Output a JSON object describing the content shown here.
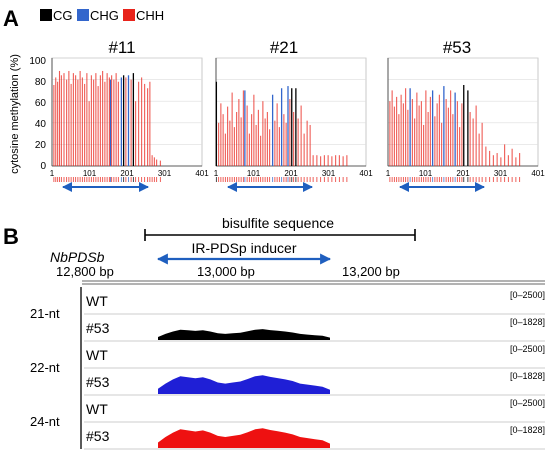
{
  "panel_a": {
    "label": "A",
    "legend": [
      {
        "name": "CG",
        "color": "#000000"
      },
      {
        "name": "CHG",
        "color": "#3366cc"
      },
      {
        "name": "CHH",
        "color": "#e8231b"
      }
    ],
    "ylabel": "cytosine methylation (%)",
    "yticks": [
      "0",
      "20",
      "40",
      "60",
      "80",
      "100"
    ],
    "xticks": [
      "1",
      "101",
      "201",
      "301",
      "401"
    ],
    "plots": [
      {
        "title": "#11"
      },
      {
        "title": "#21"
      },
      {
        "title": "#53"
      }
    ]
  },
  "panel_b": {
    "label": "B",
    "gene": "NbPDSb",
    "coords": [
      "12,800 bp",
      "13,000 bp",
      "13,200 bp"
    ],
    "bisulfite_label": "bisulfite sequence",
    "inducer_label": "IR-PDSp inducer",
    "groups": [
      {
        "name": "21-nt",
        "color": "#000000",
        "tracks": [
          {
            "label": "WT",
            "range": "[0–2500]"
          },
          {
            "label": "#53",
            "range": "[0–1828]"
          }
        ]
      },
      {
        "name": "22-nt",
        "color": "#1f1fd6",
        "tracks": [
          {
            "label": "WT",
            "range": "[0–2500]"
          },
          {
            "label": "#53",
            "range": "[0–1828]"
          }
        ]
      },
      {
        "name": "24-nt",
        "color": "#ee1111",
        "tracks": [
          {
            "label": "WT",
            "range": "[0–2500]"
          },
          {
            "label": "#53",
            "range": "[0–1828]"
          }
        ]
      }
    ]
  },
  "chart_data": [
    {
      "type": "bar",
      "title": "#11",
      "ylabel": "cytosine methylation (%)",
      "xlim": [
        1,
        401
      ],
      "ylim": [
        0,
        100
      ],
      "grid": true,
      "series": [
        {
          "name": "CG",
          "x": [
            192,
            218
          ],
          "values": [
            84,
            86
          ]
        },
        {
          "name": "CHG",
          "x": [
            157,
            186,
            205
          ],
          "values": [
            80,
            82,
            84
          ]
        },
        {
          "name": "CHH",
          "x": [
            6,
            11,
            16,
            21,
            26,
            33,
            40,
            46,
            52,
            58,
            64,
            70,
            76,
            82,
            88,
            94,
            100,
            106,
            112,
            118,
            124,
            130,
            136,
            142,
            148,
            154,
            160,
            166,
            172,
            178,
            198,
            212,
            224,
            232,
            240,
            248,
            256,
            262,
            268,
            274,
            280,
            290
          ],
          "values": [
            75,
            82,
            78,
            88,
            84,
            86,
            80,
            88,
            76,
            86,
            84,
            80,
            88,
            82,
            76,
            86,
            60,
            84,
            80,
            86,
            74,
            84,
            88,
            78,
            86,
            82,
            84,
            80,
            86,
            78,
            82,
            80,
            60,
            78,
            82,
            76,
            72,
            78,
            10,
            8,
            6,
            5
          ]
        }
      ]
    },
    {
      "type": "bar",
      "title": "#21",
      "ylabel": "cytosine methylation (%)",
      "xlim": [
        1,
        401
      ],
      "ylim": [
        0,
        100
      ],
      "grid": true,
      "series": [
        {
          "name": "CG",
          "x": [
            2,
            203,
            214
          ],
          "values": [
            78,
            72,
            72
          ]
        },
        {
          "name": "CHG",
          "x": [
            78,
            152,
            176,
            193
          ],
          "values": [
            70,
            66,
            72,
            74
          ]
        },
        {
          "name": "CHH",
          "x": [
            8,
            14,
            20,
            26,
            32,
            38,
            44,
            50,
            56,
            62,
            68,
            74,
            84,
            90,
            96,
            102,
            108,
            114,
            120,
            126,
            132,
            138,
            144,
            158,
            164,
            170,
            182,
            188,
            198,
            208,
            220,
            228,
            236,
            244,
            252,
            260,
            270,
            280,
            290,
            300,
            310,
            320,
            330,
            340,
            350
          ],
          "values": [
            40,
            58,
            48,
            30,
            55,
            42,
            68,
            36,
            50,
            62,
            45,
            70,
            56,
            30,
            48,
            66,
            38,
            52,
            28,
            60,
            44,
            50,
            34,
            42,
            58,
            36,
            48,
            40,
            62,
            50,
            44,
            56,
            30,
            42,
            38,
            10,
            10,
            9,
            10,
            10,
            9,
            10,
            10,
            9,
            10
          ]
        }
      ]
    },
    {
      "type": "bar",
      "title": "#53",
      "ylabel": "cytosine methylation (%)",
      "xlim": [
        1,
        401
      ],
      "ylim": [
        0,
        100
      ],
      "grid": true,
      "series": [
        {
          "name": "CG",
          "x": [
            203,
            214
          ],
          "values": [
            75,
            70
          ]
        },
        {
          "name": "CHG",
          "x": [
            60,
            120,
            150,
            180
          ],
          "values": [
            72,
            70,
            74,
            68
          ]
        },
        {
          "name": "CHH",
          "x": [
            6,
            12,
            18,
            24,
            30,
            36,
            42,
            48,
            54,
            66,
            72,
            78,
            84,
            90,
            96,
            102,
            108,
            114,
            126,
            132,
            138,
            144,
            156,
            162,
            168,
            174,
            186,
            192,
            198,
            220,
            228,
            236,
            244,
            252,
            262,
            272,
            282,
            292,
            302,
            312,
            322,
            332,
            342,
            352
          ],
          "values": [
            60,
            70,
            55,
            64,
            48,
            66,
            58,
            72,
            52,
            62,
            44,
            68,
            56,
            60,
            38,
            70,
            50,
            64,
            46,
            58,
            66,
            40,
            62,
            54,
            70,
            48,
            60,
            36,
            58,
            50,
            44,
            56,
            30,
            40,
            18,
            14,
            10,
            12,
            8,
            20,
            10,
            16,
            8,
            12
          ]
        }
      ]
    }
  ]
}
